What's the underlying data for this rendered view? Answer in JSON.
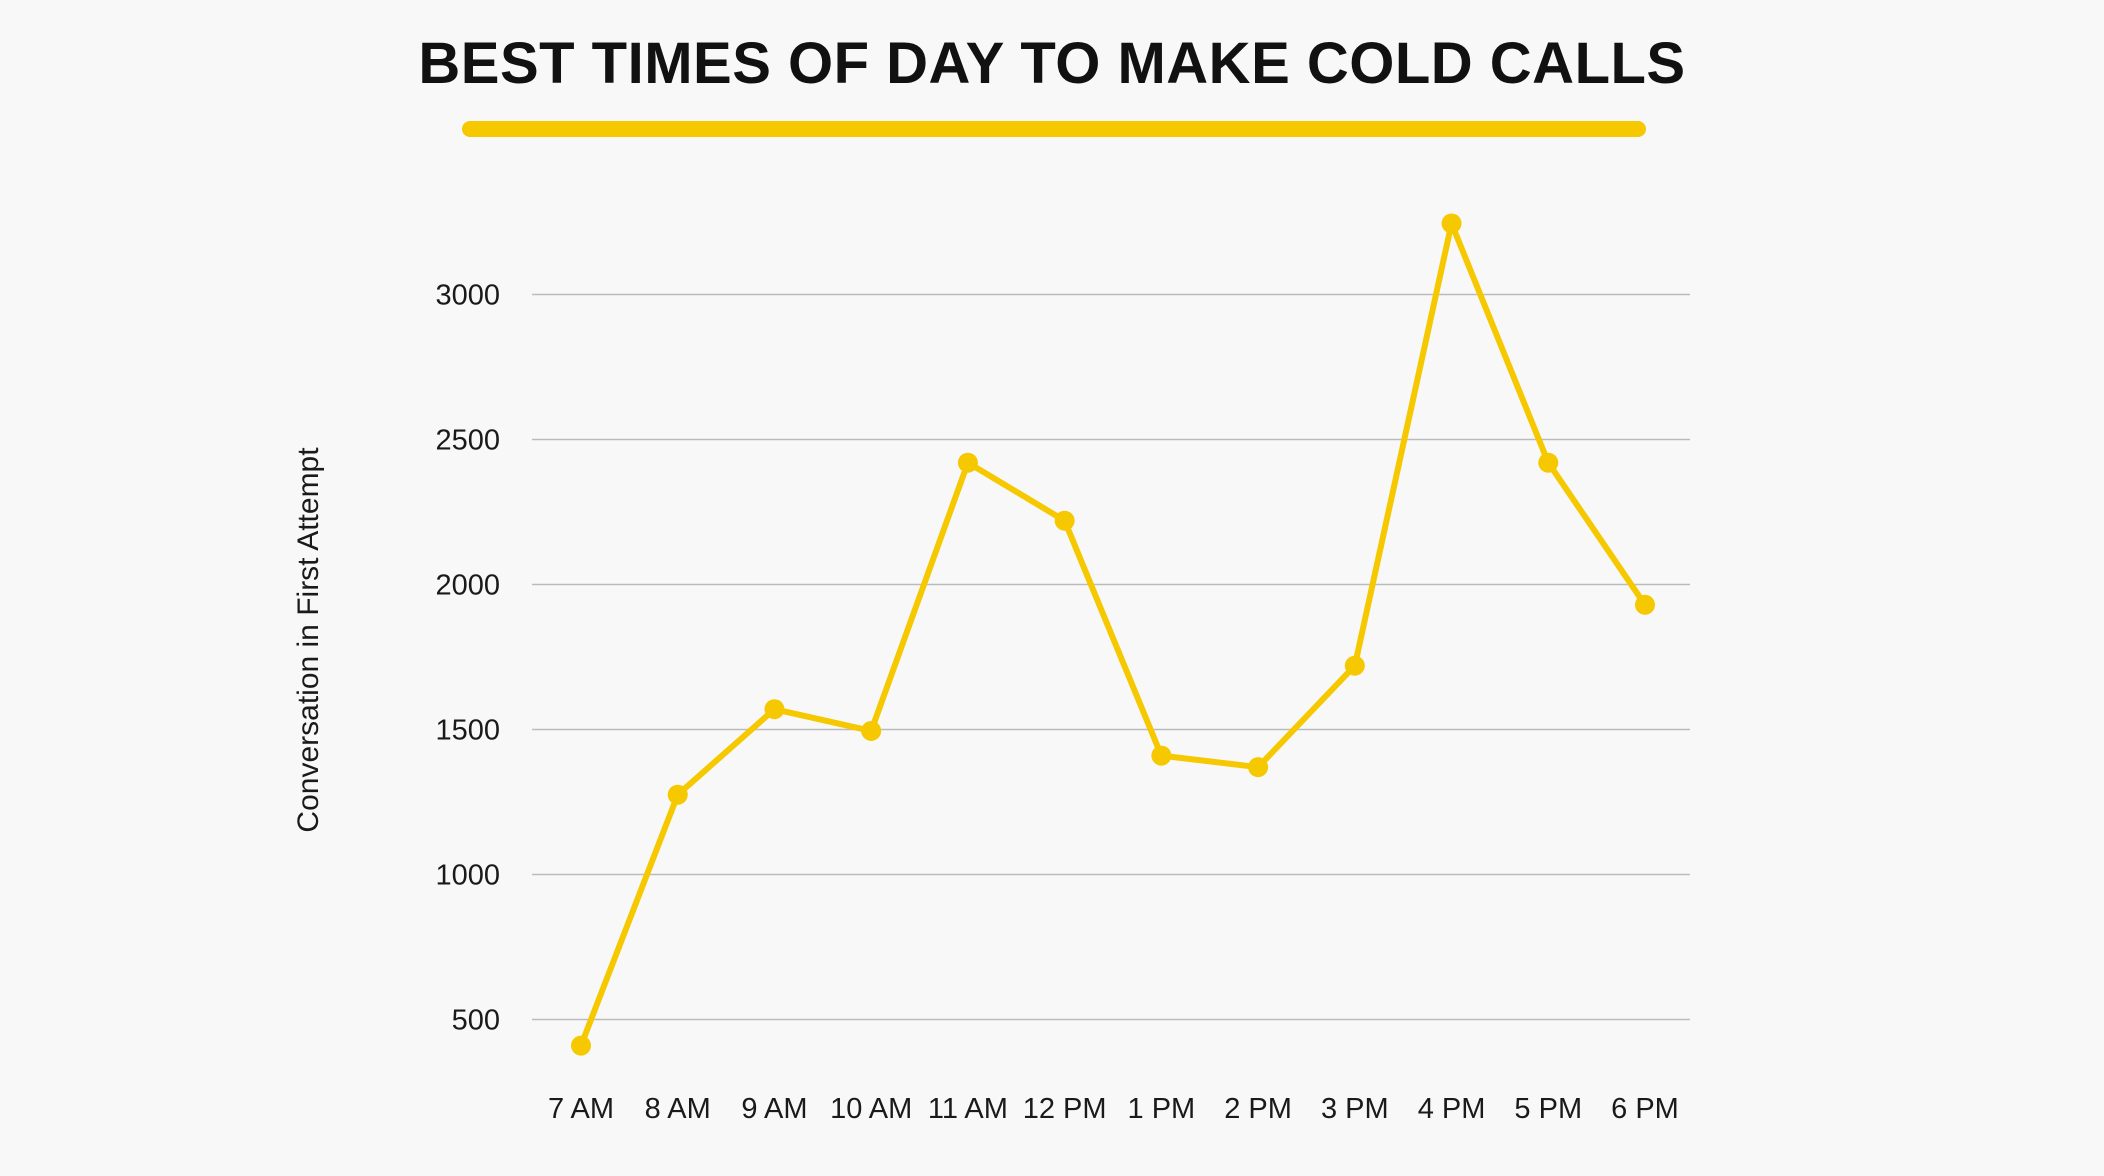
{
  "colors": {
    "background": "#f8f8f8",
    "accent": "#f5c800",
    "gridline": "#bbbbbb",
    "text": "#111111"
  },
  "chart_data": {
    "type": "line",
    "title": "BEST TIMES OF DAY TO MAKE COLD CALLS",
    "xlabel": "",
    "ylabel": "Conversation in First Attempt",
    "categories": [
      "7 AM",
      "8 AM",
      "9 AM",
      "10 AM",
      "11 AM",
      "12 PM",
      "1 PM",
      "2 PM",
      "3 PM",
      "4 PM",
      "5 PM",
      "6 PM"
    ],
    "series": [
      {
        "values": [
          410,
          1275,
          1570,
          1495,
          2420,
          2220,
          1410,
          1370,
          1720,
          3245,
          2420,
          1930
        ]
      }
    ],
    "yticks": [
      500,
      1000,
      1500,
      2000,
      2500,
      3000
    ],
    "ylim": [
      412,
      3250
    ],
    "grid": true,
    "legend": "none"
  }
}
